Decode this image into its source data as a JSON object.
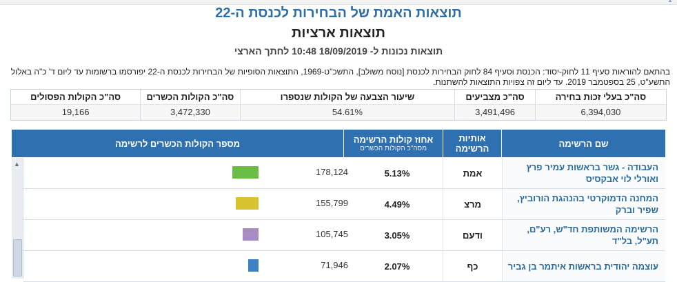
{
  "header": {
    "title": "תוצאות האמת של הבחירות לכנסת ה-22",
    "subtitle": "תוצאות ארציות",
    "updated": "תוצאות נכונות ל- 18/09/2019 10:48 לחתך הארצי"
  },
  "notice": "בהתאם להוראות סעיף 11 לחוק-יסוד: הכנסת וסעיף 84 לחוק הבחירות לכנסת [נוסח משולב], התשכ\"ט-1969, התוצאות הסופיות של הבחירות לכנסת ה-22 יפורסמו ברשומות עד ליום ד' כ\"ה באלול התשע\"ט, 25 בספטמבר 2019. עד ליום זה צפויות התוצאות להשתנות.",
  "summary": [
    {
      "label": "סה\"כ בעלי זכות בחירה",
      "value": "6,394,030"
    },
    {
      "label": "סה\"כ מצביעים",
      "value": "3,491,496"
    },
    {
      "label": "שיעור הצבעה של הקולות שנספרו",
      "value": "54.61%"
    },
    {
      "label": "סה\"כ הקולות הכשרים",
      "value": "3,472,330"
    },
    {
      "label": "סה\"כ הקולות הפסולים",
      "value": "19,166"
    }
  ],
  "table": {
    "col_name": "שם הרשימה",
    "col_letters": "אותיות הרשימה",
    "col_pct": "אחוז קולות הרשימה",
    "col_pct_sub": "מסה\"כ הקולות הכשרים",
    "col_votes": "מספר הקולות הכשרים לרשימה",
    "rows": [
      {
        "name": "העבודה - גשר בראשות עמיר פרץ ואורלי לוי אבקסיס",
        "letters": "אמת",
        "pct": "5.13%",
        "votes": "178,124",
        "color": "#6cbd45"
      },
      {
        "name": "המחנה הדמוקרטי בהנהגת הורוביץ, שפיר וברק",
        "letters": "מרצ",
        "pct": "4.49%",
        "votes": "155,799",
        "color": "#d9c331"
      },
      {
        "name": "הרשימה המשותפת חד\"ש, רע\"ם, תע\"ל, בל\"ד",
        "letters": "ודעם",
        "pct": "3.05%",
        "votes": "105,745",
        "color": "#a98cc3"
      },
      {
        "name": "עוצמה יהודית בראשות איתמר בן גביר",
        "letters": "כף",
        "pct": "2.07%",
        "votes": "71,946",
        "color": "#3f82c3"
      }
    ]
  }
}
